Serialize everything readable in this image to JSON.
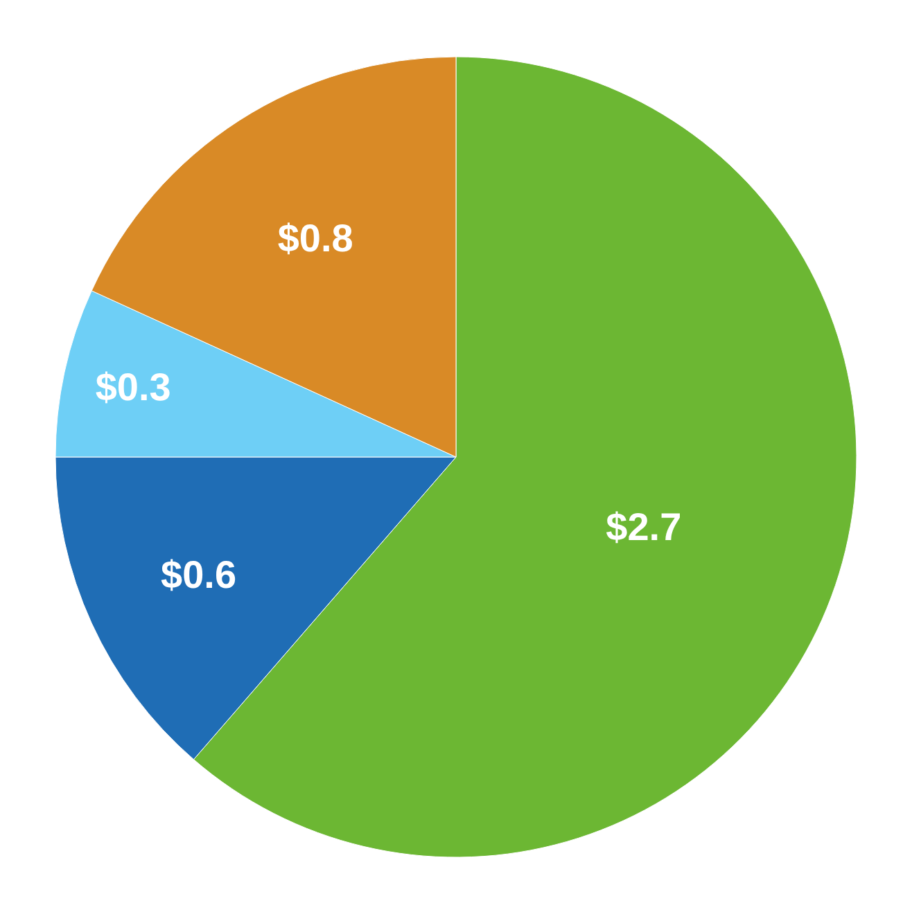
{
  "chart_data": {
    "type": "pie",
    "categories": [
      null,
      null,
      null,
      null
    ],
    "values": [
      2.7,
      0.6,
      0.3,
      0.8
    ],
    "colors": [
      "#6cb733",
      "#1f6db5",
      "#6ecff6",
      "#d98a26"
    ],
    "value_labels": [
      "$2.7",
      "$0.6",
      "$0.3",
      "$0.8"
    ]
  }
}
